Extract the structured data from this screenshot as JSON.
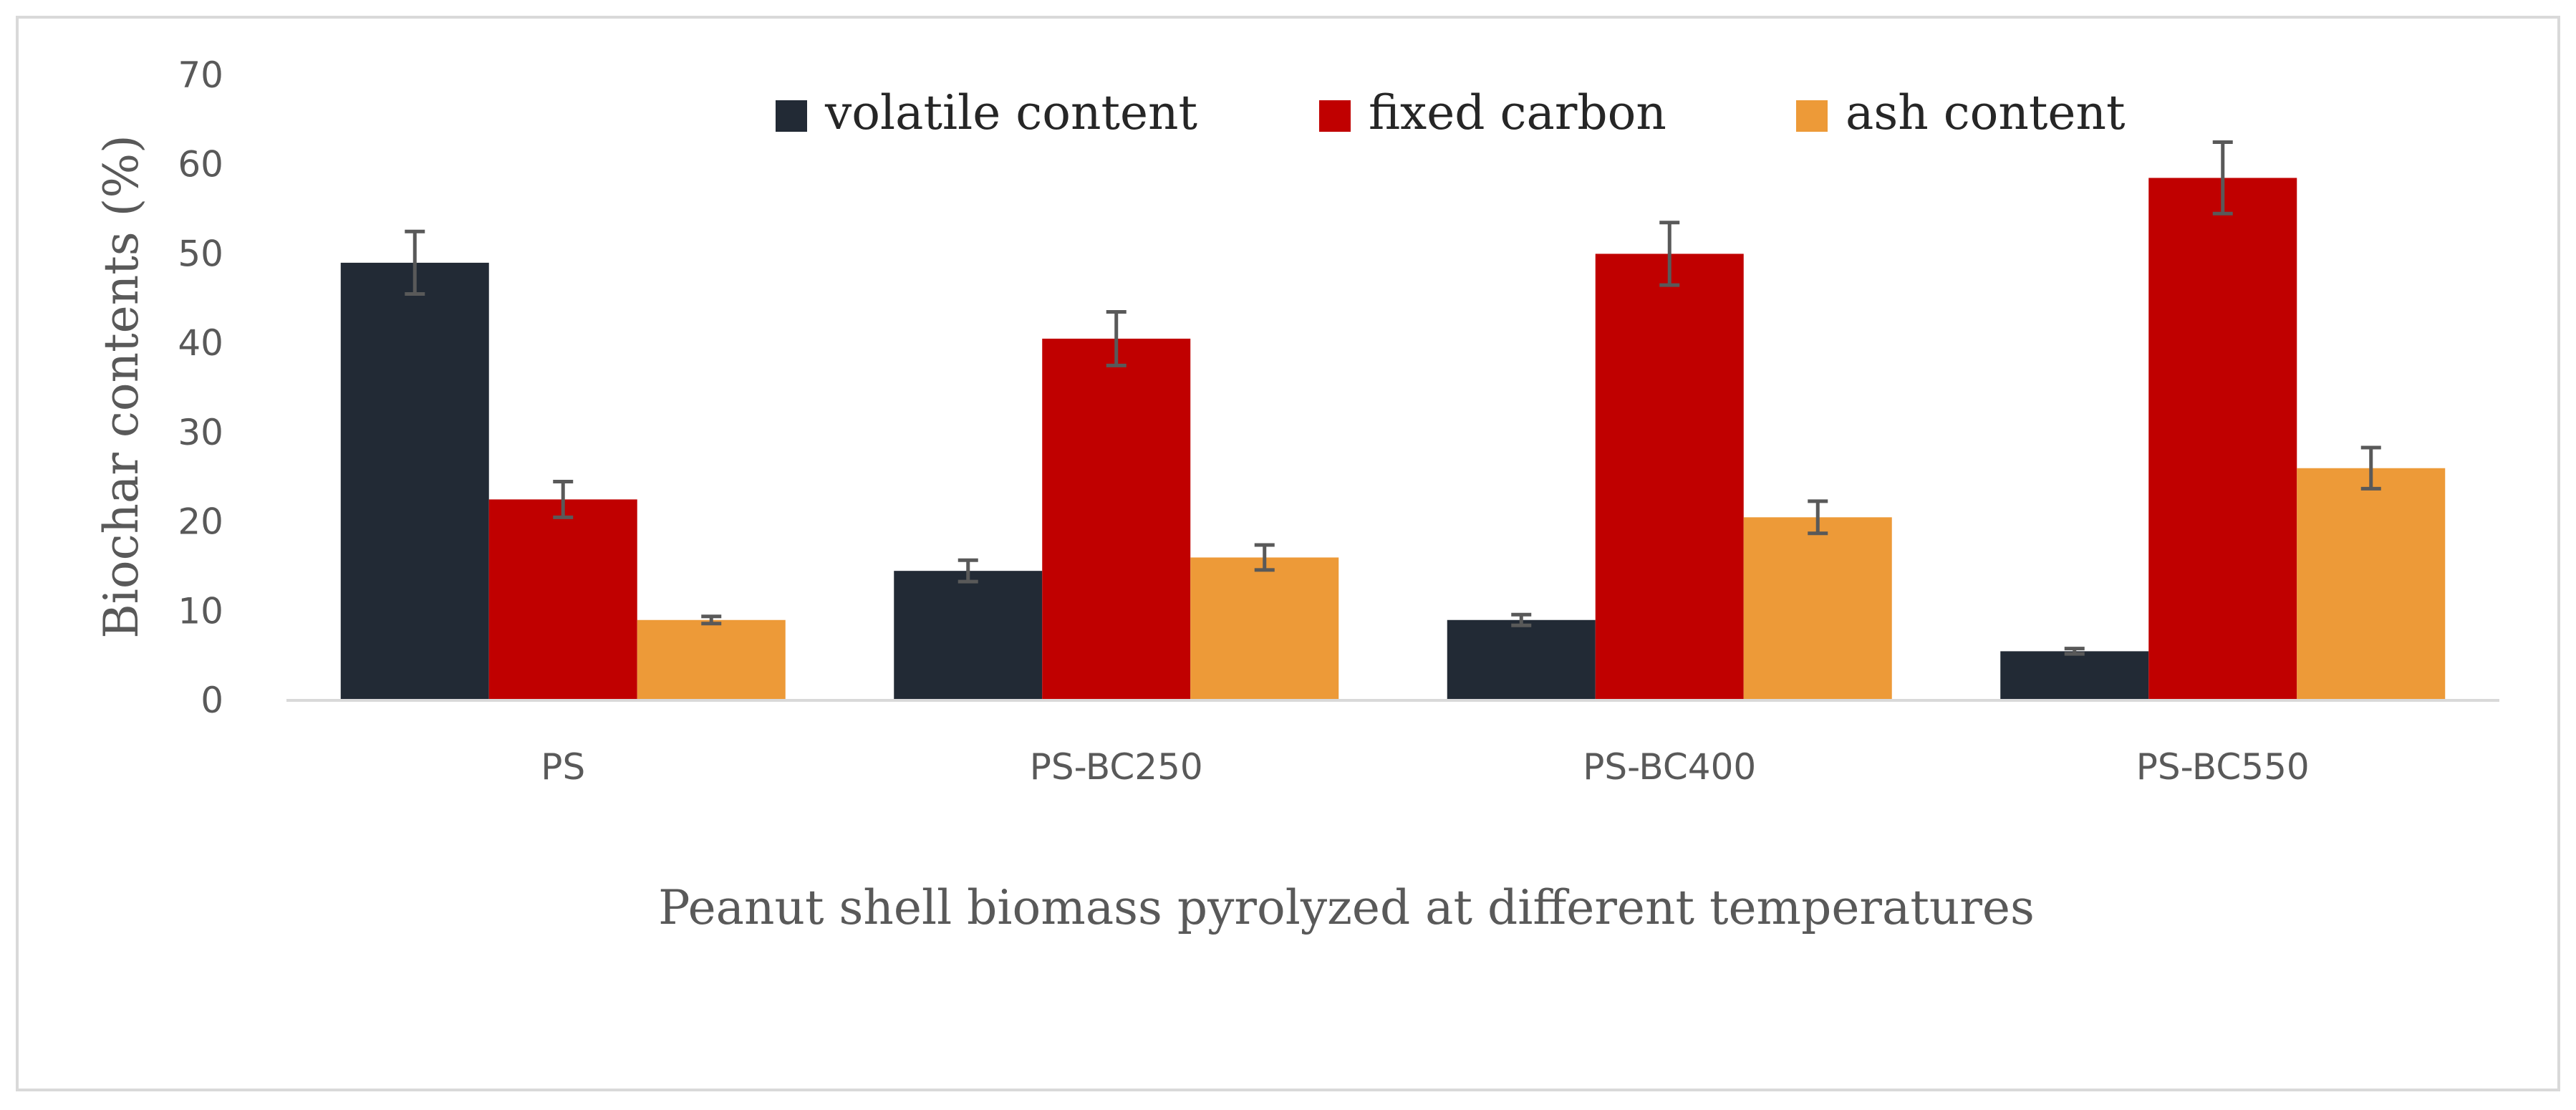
{
  "chart_data": {
    "type": "bar",
    "title": "",
    "xlabel": "Peanut shell biomass pyrolyzed at different temperatures",
    "ylabel": "Biochar contents (%)",
    "ylim": [
      0,
      70
    ],
    "yticks": [
      "0",
      "10",
      "20",
      "30",
      "40",
      "50",
      "60",
      "70"
    ],
    "grid": false,
    "legend_position": "top",
    "categories": [
      "PS",
      "PS-BC250",
      "PS-BC400",
      "PS-BC550"
    ],
    "series": [
      {
        "name": "volatile content",
        "color": "#222a35",
        "values": [
          49,
          14.5,
          9,
          5.5
        ],
        "errors": [
          3.5,
          1.2,
          0.6,
          0.3
        ]
      },
      {
        "name": "fixed carbon",
        "color": "#c00000",
        "values": [
          22.5,
          40.5,
          50,
          58.5
        ],
        "errors": [
          2,
          3,
          3.5,
          4
        ]
      },
      {
        "name": "ash content",
        "color": "#ed9a38",
        "values": [
          9,
          16,
          20.5,
          26
        ],
        "errors": [
          0.4,
          1.4,
          1.8,
          2.3
        ]
      }
    ]
  }
}
